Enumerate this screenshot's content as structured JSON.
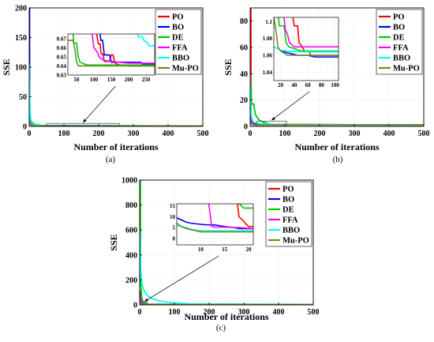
{
  "chart_data": [
    {
      "type": "line",
      "caption": "(a)",
      "xlabel": "Number of iterations",
      "ylabel": "SSE",
      "xlim": [
        0,
        500
      ],
      "ylim": [
        0,
        200
      ],
      "xticks": [
        0,
        100,
        200,
        300,
        400,
        500
      ],
      "yticks": [
        0,
        50,
        100,
        150,
        200
      ],
      "legend_position": "top-right",
      "series": [
        {
          "name": "PO",
          "color": "#ff0000",
          "x": [
            0,
            2,
            4,
            7,
            12,
            20,
            40,
            80,
            500
          ],
          "y": [
            18,
            12,
            8,
            5,
            3,
            2,
            1,
            0.7,
            0.64
          ]
        },
        {
          "name": "BO",
          "color": "#0000ff",
          "x": [
            0,
            1,
            1.3,
            3,
            6,
            12,
            30,
            500
          ],
          "y": [
            200,
            200,
            25,
            10,
            5,
            3,
            1.5,
            0.66
          ]
        },
        {
          "name": "DE",
          "color": "#00cc00",
          "x": [
            0,
            3,
            7,
            15,
            30,
            60,
            500
          ],
          "y": [
            20,
            14,
            8,
            4,
            2,
            1,
            0.65
          ]
        },
        {
          "name": "FFA",
          "color": "#ff00ff",
          "x": [
            0,
            3,
            6,
            12,
            25,
            500
          ],
          "y": [
            12,
            7,
            4,
            2.5,
            1,
            0.64
          ]
        },
        {
          "name": "BBO",
          "color": "#00ffff",
          "x": [
            0,
            1,
            2,
            3,
            5,
            8,
            12,
            18,
            25,
            40,
            500
          ],
          "y": [
            105,
            60,
            35,
            20,
            10,
            6,
            4,
            3,
            2,
            1,
            0.65
          ]
        },
        {
          "name": "Mu-PO",
          "color": "#6b8e23",
          "x": [
            0,
            2,
            4,
            8,
            15,
            30,
            500
          ],
          "y": [
            10,
            6,
            3,
            1.5,
            0.8,
            0.64,
            0.64
          ]
        }
      ],
      "zoom_box": {
        "x": [
          50,
          260
        ],
        "y": [
          0,
          5
        ]
      },
      "inset": {
        "xlim": [
          25,
          275
        ],
        "ylim": [
          0.63,
          0.675
        ],
        "xticks": [
          50,
          100,
          150,
          200,
          250
        ],
        "yticks": [
          0.63,
          0.64,
          0.65,
          0.66,
          0.67
        ],
        "ytick_labels": [
          "0.63",
          "0.64",
          "0.65",
          "0.66",
          "0.67"
        ],
        "series": [
          {
            "name": "PO",
            "color": "#ff0000",
            "x": [
              108,
              110,
              113,
              118,
              120,
              122,
              126,
              130,
              145,
              150,
              155,
              160,
              165,
              175,
              200,
              230,
              275
            ],
            "y": [
              0.675,
              0.67,
              0.664,
              0.664,
              0.655,
              0.653,
              0.653,
              0.645,
              0.645,
              0.652,
              0.652,
              0.644,
              0.642,
              0.641,
              0.64,
              0.64,
              0.64
            ]
          },
          {
            "name": "BO",
            "color": "#0000ff",
            "x": [
              118,
              120,
              125,
              130,
              145,
              150,
              235,
              240,
              250,
              275
            ],
            "y": [
              0.675,
              0.668,
              0.668,
              0.652,
              0.652,
              0.644,
              0.644,
              0.642,
              0.642,
              0.642
            ]
          },
          {
            "name": "DE",
            "color": "#00cc00",
            "x": [
              40,
              42,
              50,
              55,
              60,
              80,
              275
            ],
            "y": [
              0.675,
              0.665,
              0.665,
              0.65,
              0.644,
              0.641,
              0.641
            ]
          },
          {
            "name": "FFA",
            "color": "#ff00ff",
            "x": [
              95,
              97,
              100,
              110,
              115,
              120,
              130,
              150,
              170,
              200,
              275
            ],
            "y": [
              0.675,
              0.668,
              0.66,
              0.655,
              0.65,
              0.648,
              0.646,
              0.645,
              0.644,
              0.643,
              0.643
            ]
          },
          {
            "name": "BBO",
            "color": "#00ffff",
            "x": [
              225,
              228,
              240,
              245,
              250,
              260,
              275
            ],
            "y": [
              0.675,
              0.672,
              0.672,
              0.667,
              0.667,
              0.662,
              0.662
            ]
          },
          {
            "name": "Mu-PO",
            "color": "#6b8e23",
            "x": [
              25,
              40,
              45,
              50,
              55,
              275
            ],
            "y": [
              0.668,
              0.668,
              0.658,
              0.645,
              0.64,
              0.64
            ]
          }
        ]
      }
    },
    {
      "type": "line",
      "caption": "(b)",
      "xlabel": "Number of iterations",
      "ylabel": "SSE",
      "xlim": [
        0,
        500
      ],
      "ylim": [
        0,
        90
      ],
      "xticks": [
        0,
        100,
        200,
        300,
        400,
        500
      ],
      "yticks": [
        0,
        20,
        40,
        60,
        80
      ],
      "legend_position": "top-right",
      "series": [
        {
          "name": "PO",
          "color": "#ff0000",
          "x": [
            0,
            2,
            2.5,
            5,
            10,
            20,
            500
          ],
          "y": [
            90,
            90,
            10,
            5,
            2.5,
            1.5,
            1.05
          ]
        },
        {
          "name": "BO",
          "color": "#0000ff",
          "x": [
            0,
            3,
            8,
            20,
            500
          ],
          "y": [
            8,
            4,
            2,
            1.2,
            1.05
          ]
        },
        {
          "name": "DE",
          "color": "#00cc00",
          "x": [
            0,
            3,
            4,
            10,
            15,
            25,
            40,
            60,
            500
          ],
          "y": [
            30,
            30,
            17,
            17,
            9,
            5,
            3,
            1.5,
            1.06
          ]
        },
        {
          "name": "FFA",
          "color": "#ff00ff",
          "x": [
            0,
            3,
            8,
            20,
            500
          ],
          "y": [
            6,
            3,
            1.5,
            1.1,
            1.07
          ]
        },
        {
          "name": "BBO",
          "color": "#00ffff",
          "x": [
            0,
            1,
            3,
            6,
            10,
            30,
            80,
            500
          ],
          "y": [
            40,
            20,
            8,
            5,
            3,
            2,
            1.3,
            1.05
          ]
        },
        {
          "name": "Mu-PO",
          "color": "#6b8e23",
          "x": [
            0,
            3,
            8,
            500
          ],
          "y": [
            4,
            2,
            1.05,
            1.05
          ]
        }
      ],
      "zoom_box": {
        "x": [
          18,
          105
        ],
        "y": [
          0,
          4
        ]
      },
      "inset": {
        "xlim": [
          10,
          105
        ],
        "ylim": [
          1.03,
          1.105
        ],
        "xticks": [
          20,
          40,
          60,
          80,
          100
        ],
        "yticks": [
          1.04,
          1.06,
          1.08,
          1.1
        ],
        "ytick_labels": [
          "1.04",
          "1.06",
          "1.08",
          "1.1"
        ],
        "series": [
          {
            "name": "PO",
            "color": "#ff0000",
            "x": [
              38,
              40,
              45,
              47,
              50,
              55,
              62,
              64,
              105
            ],
            "y": [
              1.105,
              1.095,
              1.095,
              1.075,
              1.072,
              1.065,
              1.065,
              1.06,
              1.06
            ]
          },
          {
            "name": "BO",
            "color": "#0000ff",
            "x": [
              20,
              35,
              45,
              60,
              70,
              105
            ],
            "y": [
              1.065,
              1.062,
              1.06,
              1.06,
              1.058,
              1.058
            ]
          },
          {
            "name": "DE",
            "color": "#00cc00",
            "x": [
              17,
              18,
              25,
              28,
              32,
              40,
              50,
              105
            ],
            "y": [
              1.105,
              1.095,
              1.095,
              1.075,
              1.07,
              1.068,
              1.065,
              1.065
            ]
          },
          {
            "name": "FFA",
            "color": "#ff00ff",
            "x": [
              25,
              27,
              30,
              33,
              40,
              105
            ],
            "y": [
              1.105,
              1.09,
              1.085,
              1.075,
              1.07,
              1.07
            ]
          },
          {
            "name": "BBO",
            "color": "#00ffff",
            "x": [
              10,
              15,
              20,
              30,
              50,
              105
            ],
            "y": [
              1.07,
              1.068,
              1.066,
              1.065,
              1.064,
              1.064
            ]
          },
          {
            "name": "Mu-PO",
            "color": "#6b8e23",
            "x": [
              10,
              14,
              16,
              20,
              30,
              105
            ],
            "y": [
              1.105,
              1.085,
              1.07,
              1.065,
              1.06,
              1.06
            ]
          }
        ]
      }
    },
    {
      "type": "line",
      "caption": "(c)",
      "xlabel": "Number of iterations",
      "ylabel": "SSE",
      "xlim": [
        0,
        500
      ],
      "ylim": [
        0,
        1000
      ],
      "xticks": [
        0,
        100,
        200,
        300,
        400,
        500
      ],
      "yticks": [
        0,
        200,
        400,
        600,
        800,
        1000
      ],
      "legend_position": "top-right",
      "series": [
        {
          "name": "PO",
          "color": "#ff0000",
          "x": [
            0,
            2,
            4,
            8,
            12,
            18,
            25,
            500
          ],
          "y": [
            120,
            60,
            30,
            15,
            8,
            5,
            3,
            3
          ]
        },
        {
          "name": "BO",
          "color": "#0000ff",
          "x": [
            0,
            3,
            8,
            15,
            25,
            500
          ],
          "y": [
            90,
            40,
            15,
            6,
            4,
            4
          ]
        },
        {
          "name": "DE",
          "color": "#00cc00",
          "x": [
            0,
            2,
            2.5,
            6,
            10,
            15,
            25,
            500
          ],
          "y": [
            1000,
            1000,
            200,
            60,
            25,
            14,
            5,
            3
          ]
        },
        {
          "name": "FFA",
          "color": "#ff00ff",
          "x": [
            0,
            3,
            8,
            15,
            25,
            500
          ],
          "y": [
            80,
            30,
            15,
            5,
            4,
            4
          ]
        },
        {
          "name": "BBO",
          "color": "#00ffff",
          "x": [
            0,
            2,
            5,
            10,
            20,
            35,
            60,
            100,
            150,
            500
          ],
          "y": [
            600,
            350,
            200,
            130,
            80,
            50,
            30,
            15,
            8,
            3
          ]
        },
        {
          "name": "Mu-PO",
          "color": "#6b8e23",
          "x": [
            0,
            3,
            6,
            10,
            500
          ],
          "y": [
            50,
            15,
            5,
            3,
            3
          ]
        }
      ],
      "zoom_box": {
        "x": [
          5,
          22
        ],
        "y": [
          0,
          20
        ]
      },
      "inset": {
        "xlim": [
          5,
          21
        ],
        "ylim": [
          -3,
          16
        ],
        "xticks": [
          10,
          15,
          20
        ],
        "yticks": [
          0,
          5,
          10,
          15
        ],
        "ytick_labels": [
          "0",
          "5",
          "10",
          "15"
        ],
        "series": [
          {
            "name": "PO",
            "color": "#ff0000",
            "x": [
              17.7,
              18,
              19,
              19.5,
              20,
              21
            ],
            "y": [
              16,
              10,
              8,
              6.5,
              5.5,
              5.5
            ]
          },
          {
            "name": "BO",
            "color": "#0000ff",
            "x": [
              5,
              6,
              7,
              8,
              10,
              11,
              13,
              15,
              17,
              18,
              21
            ],
            "y": [
              9.5,
              8.5,
              7.5,
              7,
              6.5,
              6.3,
              6.2,
              5.5,
              5,
              4.5,
              4.5
            ]
          },
          {
            "name": "DE",
            "color": "#00cc00",
            "x": [
              18,
              18.5,
              19,
              21
            ],
            "y": [
              16,
              15.2,
              14,
              14
            ]
          },
          {
            "name": "FFA",
            "color": "#ff00ff",
            "x": [
              11.7,
              12.3,
              13,
              15,
              17,
              18,
              21
            ],
            "y": [
              16,
              5.5,
              5.2,
              5.2,
              5,
              5,
              4.5
            ]
          },
          {
            "name": "BBO",
            "color": "#00ffff",
            "x": [
              5,
              6,
              7,
              8,
              9,
              10,
              21
            ],
            "y": [
              6,
              5.5,
              5,
              4.2,
              3.8,
              3.5,
              3.5
            ]
          },
          {
            "name": "Mu-PO",
            "color": "#6b8e23",
            "x": [
              5,
              6,
              7,
              8,
              9,
              10,
              21
            ],
            "y": [
              7,
              5.5,
              4.5,
              4,
              3.5,
              3,
              3
            ]
          }
        ]
      }
    }
  ]
}
